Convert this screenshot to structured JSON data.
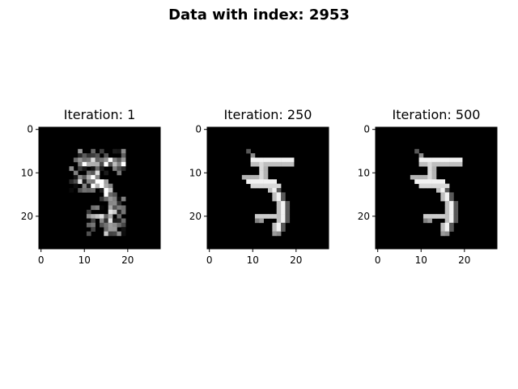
{
  "figure_title": "Data with index: 2953",
  "chart_data": [
    {
      "type": "heatmap",
      "title": "Iteration: 1",
      "colormap": "gray",
      "image_size": [
        28,
        28
      ],
      "xlim": [
        -0.5,
        27.5
      ],
      "ylim": [
        27.5,
        -0.5
      ],
      "xticks": [
        0,
        10,
        20
      ],
      "yticks": [
        0,
        10,
        20
      ],
      "xtick_labels": [
        "0",
        "10",
        "20"
      ],
      "ytick_labels": [
        "0",
        "10",
        "20"
      ],
      "variant": "noisy"
    },
    {
      "type": "heatmap",
      "title": "Iteration: 250",
      "colormap": "gray",
      "image_size": [
        28,
        28
      ],
      "xlim": [
        -0.5,
        27.5
      ],
      "ylim": [
        27.5,
        -0.5
      ],
      "xticks": [
        0,
        10,
        20
      ],
      "yticks": [
        0,
        10,
        20
      ],
      "xtick_labels": [
        "0",
        "10",
        "20"
      ],
      "ytick_labels": [
        "0",
        "10",
        "20"
      ],
      "variant": "clean"
    },
    {
      "type": "heatmap",
      "title": "Iteration: 500",
      "colormap": "gray",
      "image_size": [
        28,
        28
      ],
      "xlim": [
        -0.5,
        27.5
      ],
      "ylim": [
        27.5,
        -0.5
      ],
      "xticks": [
        0,
        10,
        20
      ],
      "yticks": [
        0,
        10,
        20
      ],
      "xtick_labels": [
        "0",
        "10",
        "20"
      ],
      "ytick_labels": [
        "0",
        "10",
        "20"
      ],
      "variant": "clean"
    }
  ]
}
